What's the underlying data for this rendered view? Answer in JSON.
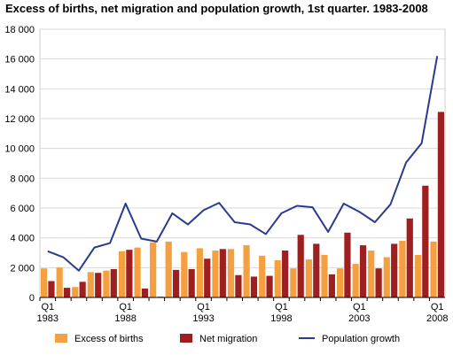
{
  "chart_data": {
    "type": "bar",
    "title": "Excess of births, net migration and population growth, 1st quarter. 1983-2008",
    "xlabel": "",
    "ylabel": "",
    "ylim": [
      0,
      18000
    ],
    "yticks": [
      0,
      2000,
      4000,
      6000,
      8000,
      10000,
      12000,
      14000,
      16000,
      18000
    ],
    "ytick_labels": [
      "0",
      "2 000",
      "4 000",
      "6 000",
      "8 000",
      "10 000",
      "12 000",
      "14 000",
      "16 000",
      "18 000"
    ],
    "grid": true,
    "legend_position": "bottom",
    "categories": [
      "1983",
      "1984",
      "1985",
      "1986",
      "1987",
      "1988",
      "1989",
      "1990",
      "1991",
      "1992",
      "1993",
      "1994",
      "1995",
      "1996",
      "1997",
      "1998",
      "1999",
      "2000",
      "2001",
      "2002",
      "2003",
      "2004",
      "2005",
      "2006",
      "2007",
      "2008"
    ],
    "x_tick_labels": [
      {
        "category": "1983",
        "top": "Q1",
        "bottom": "1983"
      },
      {
        "category": "1988",
        "top": "Q1",
        "bottom": "1988"
      },
      {
        "category": "1993",
        "top": "Q1",
        "bottom": "1993"
      },
      {
        "category": "1998",
        "top": "Q1",
        "bottom": "1998"
      },
      {
        "category": "2003",
        "top": "Q1",
        "bottom": "2003"
      },
      {
        "category": "2008",
        "top": "Q1",
        "bottom": "2008"
      }
    ],
    "series": [
      {
        "name": "Excess of births",
        "kind": "bar",
        "color": "#f5a040",
        "values": [
          1950,
          2000,
          700,
          1700,
          1800,
          3100,
          3350,
          3700,
          3750,
          3050,
          3300,
          3150,
          3250,
          3500,
          2800,
          2500,
          1950,
          2550,
          2850,
          1950,
          2250,
          3150,
          2700,
          3800,
          2850,
          3750
        ]
      },
      {
        "name": "Net migration",
        "kind": "bar",
        "color": "#9e1f1f",
        "values": [
          1100,
          650,
          1050,
          1650,
          1900,
          3200,
          600,
          50,
          1850,
          1900,
          2600,
          3250,
          1500,
          1400,
          1450,
          3150,
          4200,
          3600,
          1550,
          4350,
          3500,
          1950,
          3600,
          5300,
          7500,
          12450
        ]
      },
      {
        "name": "Population growth",
        "kind": "line",
        "color": "#2a3b8f",
        "values": [
          3100,
          2700,
          1800,
          3350,
          3650,
          6300,
          3950,
          3750,
          5650,
          4900,
          5850,
          6350,
          5050,
          4900,
          4250,
          5650,
          6150,
          6050,
          4400,
          6300,
          5750,
          5050,
          6250,
          9050,
          10350,
          16200
        ]
      }
    ]
  }
}
